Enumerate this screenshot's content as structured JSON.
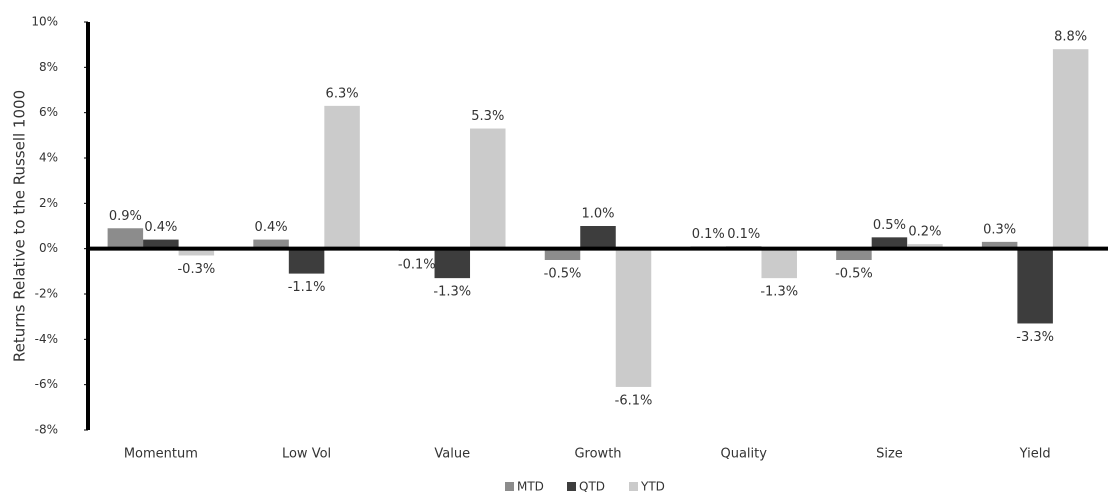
{
  "chart_data": {
    "type": "bar",
    "y_label": "Returns Relative to the Russell 1000",
    "categories": [
      "Momentum",
      "Low Vol",
      "Value",
      "Growth",
      "Quality",
      "Size",
      "Yield"
    ],
    "series": [
      {
        "name": "MTD",
        "color": "#8c8c8c",
        "values": [
          0.9,
          0.4,
          -0.1,
          -0.5,
          0.1,
          -0.5,
          0.3
        ],
        "value_labels": [
          "0.9%",
          "0.4%",
          "-0.1%",
          "-0.5%",
          "0.1%",
          "-0.5%",
          "0.3%"
        ]
      },
      {
        "name": "QTD",
        "color": "#3d3d3d",
        "values": [
          0.4,
          -1.1,
          -1.3,
          1.0,
          0.1,
          0.5,
          -3.3
        ],
        "value_labels": [
          "0.4%",
          "-1.1%",
          "-1.3%",
          "1.0%",
          "0.1%",
          "0.5%",
          "-3.3%"
        ]
      },
      {
        "name": "YTD",
        "color": "#cbcbcb",
        "values": [
          -0.3,
          6.3,
          5.3,
          -6.1,
          -1.3,
          0.2,
          8.8
        ],
        "value_labels": [
          "-0.3%",
          "6.3%",
          "5.3%",
          "-6.1%",
          "-1.3%",
          "0.2%",
          "8.8%"
        ]
      }
    ],
    "ylim": [
      -8,
      10
    ],
    "yticks": [
      {
        "value": -8,
        "label": "-8%"
      },
      {
        "value": -6,
        "label": "-6%"
      },
      {
        "value": -4,
        "label": "-4%"
      },
      {
        "value": -2,
        "label": "-2%"
      },
      {
        "value": 0,
        "label": "0%"
      },
      {
        "value": 2,
        "label": "2%"
      },
      {
        "value": 4,
        "label": "4%"
      },
      {
        "value": 6,
        "label": "6%"
      },
      {
        "value": 8,
        "label": "8%"
      },
      {
        "value": 10,
        "label": "10%"
      }
    ],
    "legend": "bottom"
  }
}
